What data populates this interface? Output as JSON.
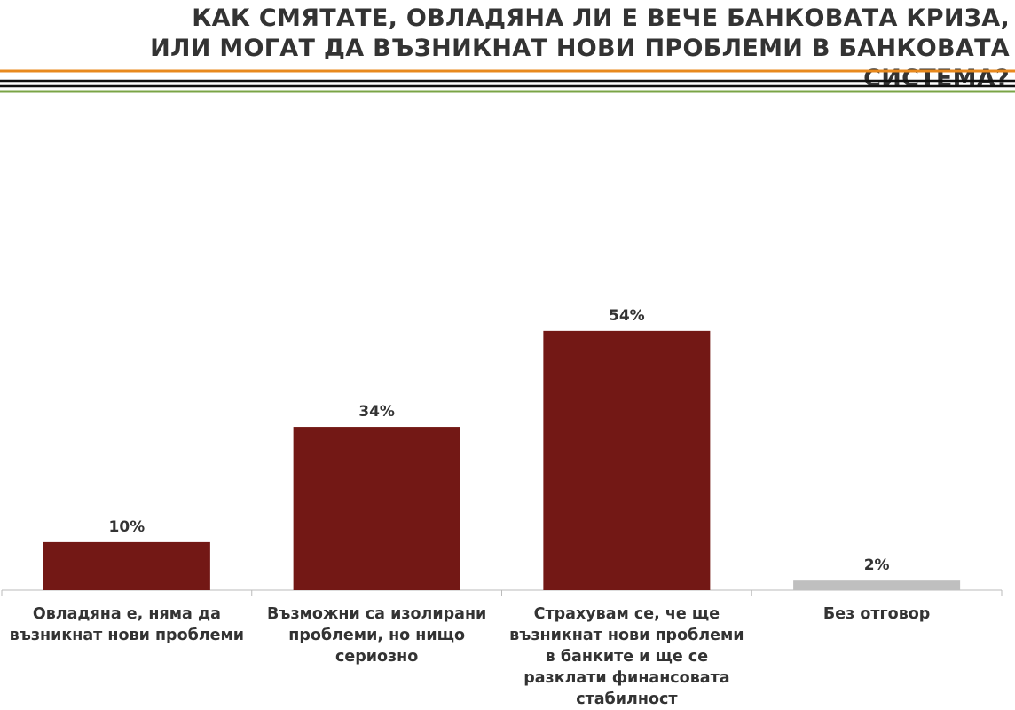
{
  "chart_data": {
    "type": "bar",
    "title": [
      "КАК СМЯТАТЕ, ОВЛАДЯНА ЛИ Е ВЕЧЕ БАНКОВАТА КРИЗА,",
      "ИЛИ МОГАТ ДА ВЪЗНИКНАТ НОВИ ПРОБЛЕМИ В БАНКОВАТА СИСТЕМА?"
    ],
    "categories": [
      "Овладяна е, няма да възникнат нови проблеми",
      "Възможни са изолирани проблеми, но нищо сериозно",
      "Страхувам се, че ще възникнат нови проблеми в банките и ще се разклати финансовата стабилност",
      "Без отговор"
    ],
    "values": [
      10,
      34,
      54,
      2
    ],
    "value_labels": [
      "10%",
      "34%",
      "54%",
      "2%"
    ],
    "colors": [
      "#731815",
      "#731815",
      "#731815",
      "#bfbfbf"
    ]
  }
}
